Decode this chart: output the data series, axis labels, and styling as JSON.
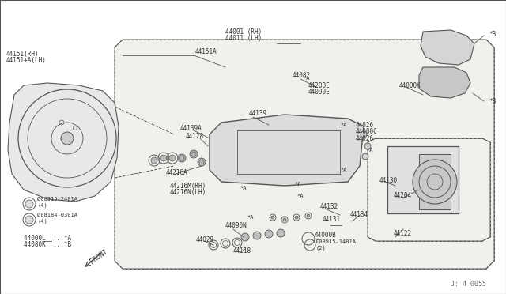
{
  "bg_color": "#f5f5f0",
  "line_color": "#555555",
  "text_color": "#333333",
  "diagram_ref": "J: 4 0055",
  "labels": {
    "44151_RH": "44151(RH)",
    "44151A_LH": "44151+A(LH)",
    "44151A": "44151A",
    "44001_RH": "44001 (RH)",
    "44011_LH": "44011 (LH)",
    "44082": "44082",
    "44200E": "44200E",
    "44090E": "44090E",
    "44139A": "44139A",
    "44128": "44128",
    "44139": "44139",
    "44026a": "44026",
    "44000C": "44000C",
    "44026b": "44026",
    "44216A": "44216A",
    "44216M_RH": "44216M(RH)",
    "44216N_LH": "44216N(LH)",
    "44090N": "44090N",
    "44029": "44029",
    "44118": "44118",
    "44000B": "44000B",
    "44132": "44132",
    "44131": "44131",
    "44134": "44134",
    "44122": "44122",
    "44130": "44130",
    "44204": "44204",
    "44000K": "44000K",
    "08915_2481A": "Ø08915-2481A",
    "08184_0301A": "Ø08184-0301A",
    "count4a": "(4)",
    "count4b": "(4)",
    "44000L": "44000L  ...*A",
    "44080K": "44080K  ...*B",
    "front": "FRONT",
    "starA": "*A",
    "starB": "*B",
    "08915_1401A": "Ð08915-1401A",
    "count2": "(2)"
  }
}
